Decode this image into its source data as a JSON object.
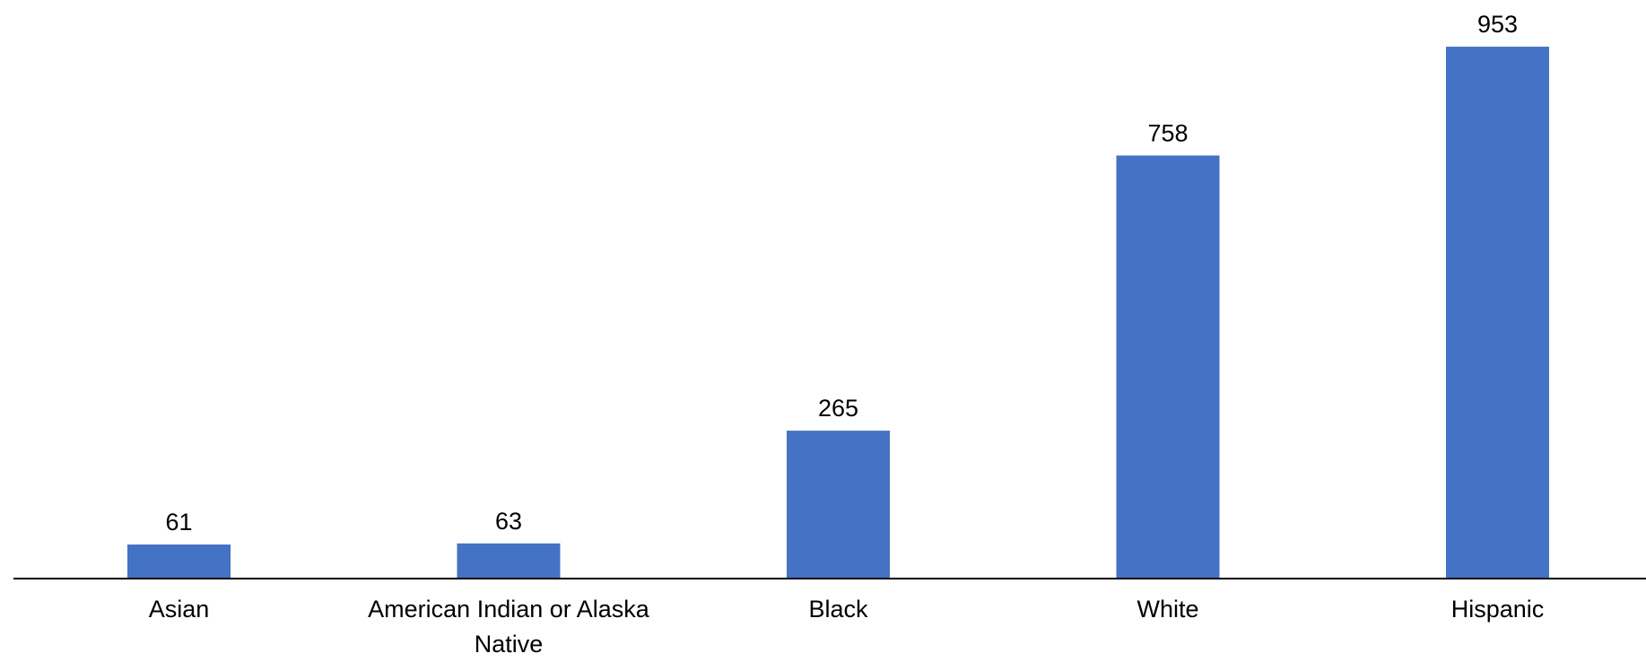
{
  "chart_data": {
    "type": "bar",
    "categories": [
      "Asian",
      "American Indian or Alaska Native",
      "Black",
      "White",
      "Hispanic"
    ],
    "values": [
      61,
      63,
      265,
      758,
      953
    ],
    "data_labels": [
      "61",
      "63",
      "265",
      "758",
      "953"
    ],
    "title": "",
    "xlabel": "",
    "ylabel": "",
    "ylim": [
      0,
      1000
    ],
    "grid": false,
    "legend": "none",
    "y_axis_shown": false,
    "bar_color": "#4472C4",
    "axis_color": "#000000"
  }
}
